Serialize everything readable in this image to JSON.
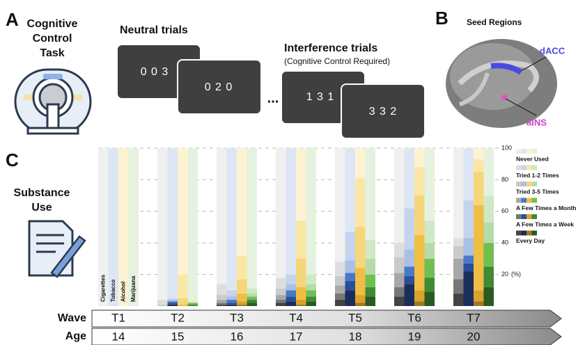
{
  "panel_a": {
    "letter": "A",
    "task_lines": [
      "Cognitive",
      "Control",
      "Task"
    ],
    "neutral_title": "Neutral trials",
    "neutral_cards": [
      "0 0 3",
      "0 2 0"
    ],
    "ellipsis": "...",
    "interference_title": "Interference trials",
    "interference_subtitle": "(Cognitive Control Required)",
    "interference_cards": [
      "1 3 1",
      "3 3 2"
    ]
  },
  "panel_b": {
    "letter": "B",
    "title": "Seed Regions",
    "regions": [
      "dACC",
      "aINS"
    ]
  },
  "panel_c": {
    "letter": "C",
    "title_lines": [
      "Substance",
      "Use"
    ]
  },
  "chart_data": {
    "type": "stacked_bar",
    "categories": [
      "T1",
      "T2",
      "T3",
      "T4",
      "T5",
      "T6",
      "T7"
    ],
    "substances": [
      "Cigarettes",
      "Tobacco",
      "Alcohol",
      "Marijuana"
    ],
    "ylim": [
      0,
      100
    ],
    "yticks": [
      20,
      40,
      60,
      80,
      100
    ],
    "y_unit": "(%)",
    "series": [
      {
        "name": "Never Used",
        "colors": [
          "#f0f0f0",
          "#dde6f5",
          "#fdf3d3",
          "#e5f2df"
        ],
        "values": [
          [
            100,
            100,
            100,
            100
          ],
          [
            96,
            95,
            80,
            97
          ],
          [
            86,
            90,
            68,
            89
          ],
          [
            82,
            80,
            46,
            80
          ],
          [
            72,
            53,
            19,
            58
          ],
          [
            60,
            38,
            12,
            46
          ],
          [
            57,
            33,
            7,
            30
          ]
        ]
      },
      {
        "name": "Tried 1-2 Times",
        "colors": [
          "#dedede",
          "#c5d3ee",
          "#fbe7a5",
          "#cfe8c5"
        ],
        "values": [
          [
            0,
            0,
            0,
            0
          ],
          [
            3,
            1,
            15,
            1
          ],
          [
            7,
            4,
            15,
            3
          ],
          [
            7,
            6,
            24,
            6
          ],
          [
            9,
            18,
            31,
            12
          ],
          [
            9,
            26,
            18,
            14
          ],
          [
            5,
            24,
            8,
            17
          ]
        ]
      },
      {
        "name": "Tried 3-5 Times",
        "colors": [
          "#cacaca",
          "#a9c0e6",
          "#f6d67a",
          "#b5dca6"
        ],
        "values": [
          [
            0,
            0,
            0,
            0
          ],
          [
            1,
            1,
            4,
            0
          ],
          [
            3,
            2,
            9,
            2
          ],
          [
            4,
            4,
            18,
            4
          ],
          [
            6,
            8,
            26,
            10
          ],
          [
            10,
            11,
            25,
            10
          ],
          [
            8,
            11,
            21,
            13
          ]
        ]
      },
      {
        "name": "A Few Times a Month",
        "colors": [
          "#a8a8a8",
          "#4a78c8",
          "#f0bd45",
          "#6fbf52"
        ],
        "values": [
          [
            0,
            0,
            0,
            0
          ],
          [
            0,
            1,
            1,
            1
          ],
          [
            2,
            2,
            5,
            2
          ],
          [
            3,
            4,
            8,
            4
          ],
          [
            5,
            5,
            17,
            8
          ],
          [
            9,
            6,
            35,
            12
          ],
          [
            13,
            5,
            54,
            15
          ]
        ]
      },
      {
        "name": "A Few Times a Week",
        "colors": [
          "#777777",
          "#2a4f9a",
          "#dba22a",
          "#3f8a34"
        ],
        "values": [
          [
            0,
            0,
            0,
            0
          ],
          [
            0,
            1,
            0,
            1
          ],
          [
            1,
            1,
            2,
            2
          ],
          [
            2,
            3,
            3,
            3
          ],
          [
            4,
            6,
            5,
            6
          ],
          [
            6,
            5,
            7,
            9
          ],
          [
            9,
            5,
            7,
            13
          ]
        ]
      },
      {
        "name": "Every Day",
        "colors": [
          "#444444",
          "#1a2e5c",
          "#a07820",
          "#2a5a24"
        ],
        "values": [
          [
            0,
            0,
            0,
            0
          ],
          [
            0,
            1,
            0,
            0
          ],
          [
            1,
            1,
            1,
            2
          ],
          [
            2,
            3,
            1,
            3
          ],
          [
            4,
            10,
            2,
            6
          ],
          [
            6,
            14,
            3,
            9
          ],
          [
            8,
            22,
            3,
            12
          ]
        ]
      }
    ],
    "timeline": {
      "wave_label": "Wave",
      "age_label": "Age",
      "ages": [
        "14",
        "15",
        "16",
        "17",
        "18",
        "19",
        "20"
      ]
    }
  }
}
